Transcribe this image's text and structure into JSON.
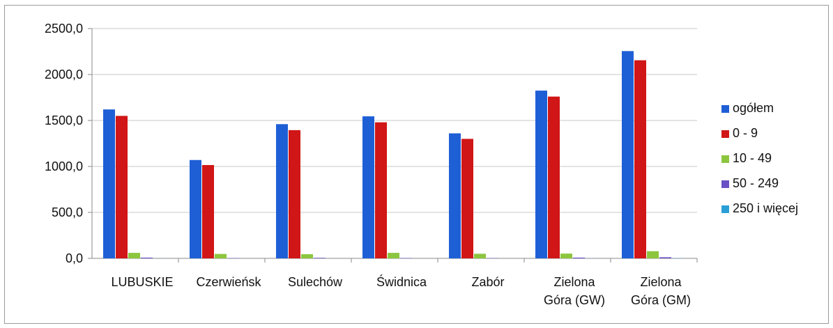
{
  "chart_data": {
    "type": "bar",
    "title": "",
    "xlabel": "",
    "ylabel": "",
    "ylim": [
      0,
      2500
    ],
    "yticks": [
      "0,0",
      "500,0",
      "1000,0",
      "1500,0",
      "2000,0",
      "2500,0"
    ],
    "grid": true,
    "legend_position": "right",
    "categories": [
      [
        "LUBUSKIE"
      ],
      [
        "Czerwieńsk"
      ],
      [
        "Sulechów"
      ],
      [
        "Świdnica"
      ],
      [
        "Zabór"
      ],
      [
        "Zielona",
        "Góra (GW)"
      ],
      [
        "Zielona",
        "Góra (GM)"
      ]
    ],
    "series": [
      {
        "name": "ogółem",
        "color": "#1f5fd6",
        "values": [
          1620,
          1070,
          1460,
          1545,
          1360,
          1825,
          2255
        ]
      },
      {
        "name": "0 - 9",
        "color": "#d01616",
        "values": [
          1550,
          1015,
          1395,
          1480,
          1300,
          1760,
          2155
        ]
      },
      {
        "name": "10 - 49",
        "color": "#8cc63f",
        "values": [
          60,
          48,
          45,
          60,
          50,
          52,
          78
        ]
      },
      {
        "name": "50 - 249",
        "color": "#6a4fc4",
        "values": [
          8,
          3,
          6,
          4,
          3,
          8,
          12
        ]
      },
      {
        "name": "250 i więcej",
        "color": "#2a9fd6",
        "values": [
          1,
          0,
          0,
          0,
          0,
          1,
          2
        ]
      }
    ]
  }
}
